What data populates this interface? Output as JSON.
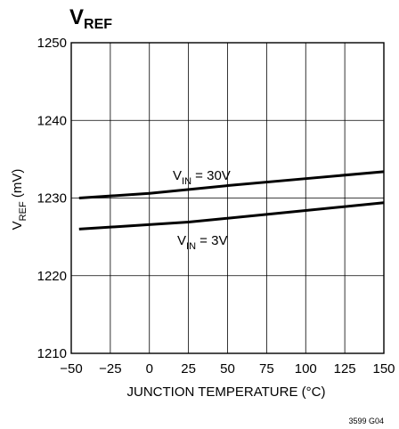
{
  "chart_data": {
    "type": "line",
    "title": "V",
    "title_sub": "REF",
    "xlabel": "JUNCTION TEMPERATURE (°C)",
    "ylabel_main": "V",
    "ylabel_sub": "REF",
    "ylabel_unit": " (mV)",
    "xlim": [
      -50,
      150
    ],
    "ylim": [
      1210,
      1250
    ],
    "x_ticks": [
      -50,
      -25,
      0,
      25,
      50,
      75,
      100,
      125,
      150
    ],
    "y_ticks": [
      1210,
      1220,
      1230,
      1240,
      1250
    ],
    "x_tick_labels": [
      "−50",
      "−25",
      "0",
      "25",
      "50",
      "75",
      "100",
      "125",
      "150"
    ],
    "y_tick_labels": [
      "1210",
      "1220",
      "1230",
      "1240",
      "1250"
    ],
    "grid": true,
    "series": [
      {
        "label_main": "V",
        "label_sub": "IN",
        "label_rest": " = 30V",
        "x": [
          -45,
          0,
          50,
          100,
          150
        ],
        "y": [
          1230.0,
          1230.6,
          1231.6,
          1232.5,
          1233.4
        ]
      },
      {
        "label_main": "V",
        "label_sub": "IN",
        "label_rest": " = 3V",
        "x": [
          -45,
          25,
          75,
          150
        ],
        "y": [
          1226.0,
          1226.9,
          1227.9,
          1229.4
        ]
      }
    ],
    "figure_id": "3599 G04",
    "line_color": "#000000",
    "grid_color": "#000000"
  }
}
